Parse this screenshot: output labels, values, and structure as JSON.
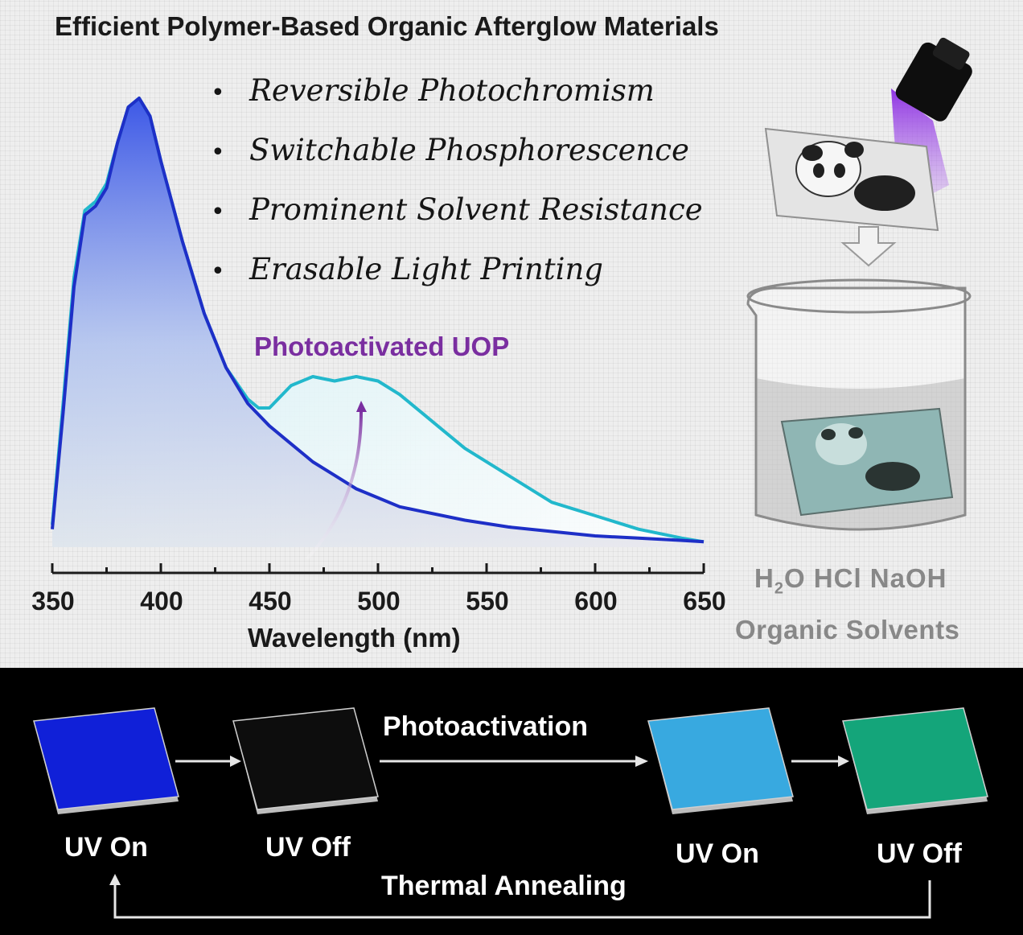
{
  "title": "Efficient Polymer-Based Organic Afterglow Materials",
  "features": [
    "Reversible Photochromism",
    "Switchable Phosphorescence",
    "Prominent Solvent Resistance",
    "Erasable Light Printing"
  ],
  "bullet_glyph": "•",
  "annotation": "Photoactivated UOP",
  "chart_data": {
    "type": "line",
    "xlabel": "Wavelength (nm)",
    "xlim": [
      350,
      650
    ],
    "x_ticks": [
      350,
      400,
      450,
      500,
      550,
      600,
      650
    ],
    "series": [
      {
        "color": "#1e2fc7",
        "x": [
          350,
          355,
          360,
          365,
          370,
          375,
          380,
          385,
          390,
          395,
          400,
          410,
          420,
          430,
          440,
          450,
          460,
          470,
          480,
          490,
          500,
          510,
          520,
          540,
          560,
          580,
          600,
          620,
          640,
          650
        ],
        "y": [
          0.04,
          0.3,
          0.58,
          0.74,
          0.76,
          0.8,
          0.9,
          0.98,
          1.0,
          0.96,
          0.86,
          0.68,
          0.52,
          0.4,
          0.32,
          0.27,
          0.23,
          0.19,
          0.16,
          0.13,
          0.11,
          0.09,
          0.08,
          0.06,
          0.045,
          0.035,
          0.025,
          0.02,
          0.015,
          0.012
        ]
      },
      {
        "color": "#22b8cc",
        "x": [
          350,
          355,
          360,
          365,
          370,
          375,
          380,
          385,
          390,
          395,
          400,
          410,
          420,
          430,
          440,
          445,
          450,
          460,
          470,
          480,
          490,
          500,
          510,
          520,
          530,
          540,
          560,
          580,
          600,
          620,
          640,
          650
        ],
        "y": [
          0.05,
          0.32,
          0.6,
          0.75,
          0.77,
          0.81,
          0.9,
          0.98,
          1.0,
          0.96,
          0.86,
          0.68,
          0.52,
          0.4,
          0.33,
          0.31,
          0.31,
          0.36,
          0.38,
          0.37,
          0.38,
          0.37,
          0.34,
          0.3,
          0.26,
          0.22,
          0.16,
          0.1,
          0.07,
          0.04,
          0.02,
          0.012
        ]
      }
    ]
  },
  "solvents_line1": [
    "H",
    "2",
    "O  HCl  NaOH"
  ],
  "solvents_line2": "Organic Solvents",
  "process": {
    "squares": [
      {
        "label": "UV On",
        "color": "#1020d8"
      },
      {
        "label": "UV Off",
        "color": "#0d0d0d"
      },
      {
        "label": "UV On",
        "color": "#38a9e0"
      },
      {
        "label": "UV Off",
        "color": "#14a57a"
      }
    ],
    "photoactivation": "Photoactivation",
    "thermal_annealing": "Thermal Annealing"
  },
  "colors": {
    "uv_beam": "#8a2be2",
    "annotation": "#7a2ea0",
    "arrow_white": "#e6e6e6"
  }
}
